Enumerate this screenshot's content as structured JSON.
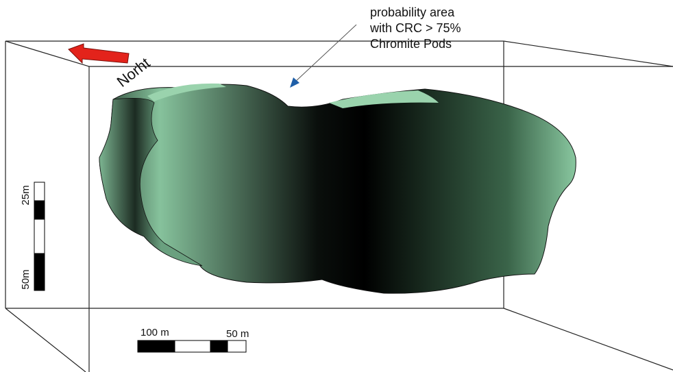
{
  "annotation": {
    "lines": [
      "probability area",
      "with CRC > 75%",
      "Chromite Pods"
    ]
  },
  "north_label": "Norht",
  "vertical_scale": {
    "top_label": "25m",
    "bottom_label": "50m"
  },
  "horizontal_scale": {
    "left_label": "100 m",
    "right_label": "50 m"
  }
}
